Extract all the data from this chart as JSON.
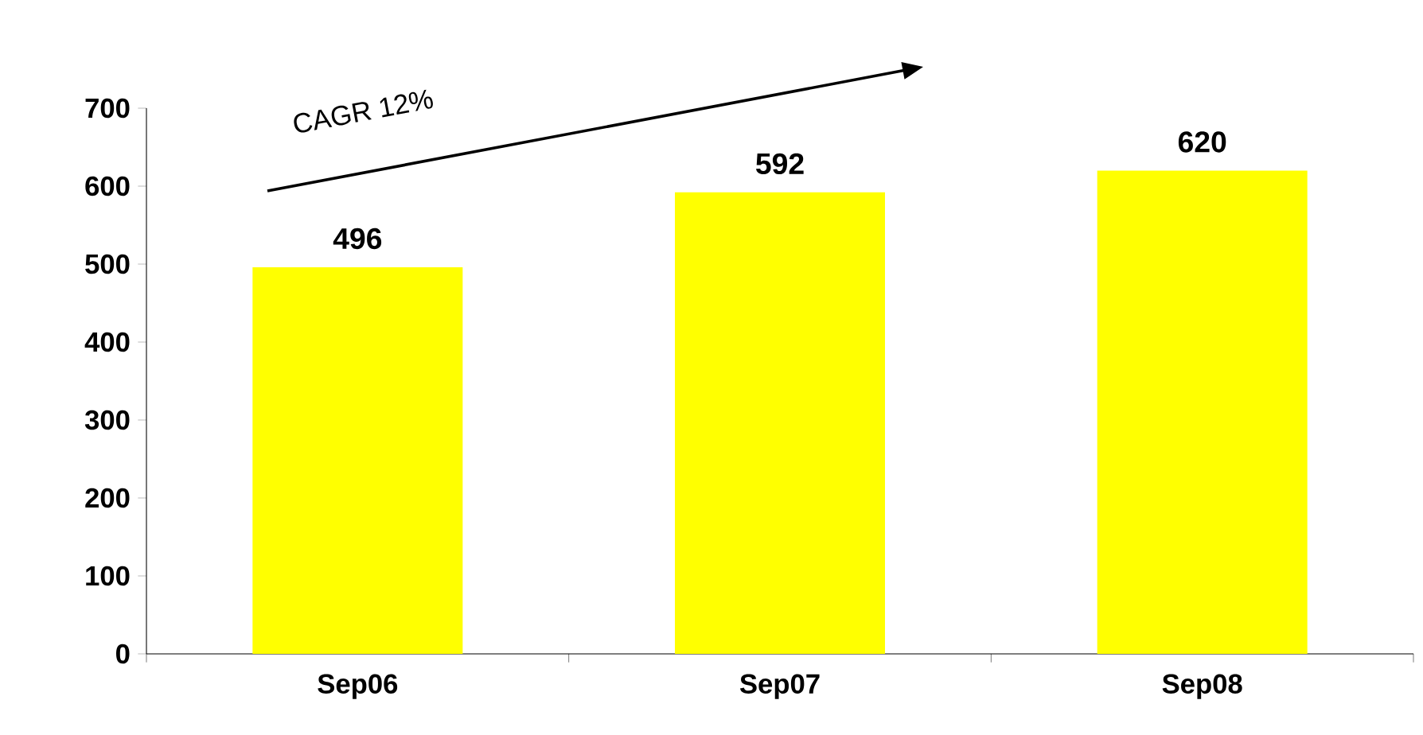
{
  "chart_data": {
    "type": "bar",
    "categories": [
      "Sep06",
      "Sep07",
      "Sep08"
    ],
    "values": [
      496,
      592,
      620
    ],
    "color": "#ffff00",
    "ylim": [
      0,
      700
    ],
    "yticks": [
      0,
      100,
      200,
      300,
      400,
      500,
      600,
      700
    ],
    "data_labels": true,
    "grid": false,
    "annotations": [
      "CAGR 12%"
    ]
  }
}
